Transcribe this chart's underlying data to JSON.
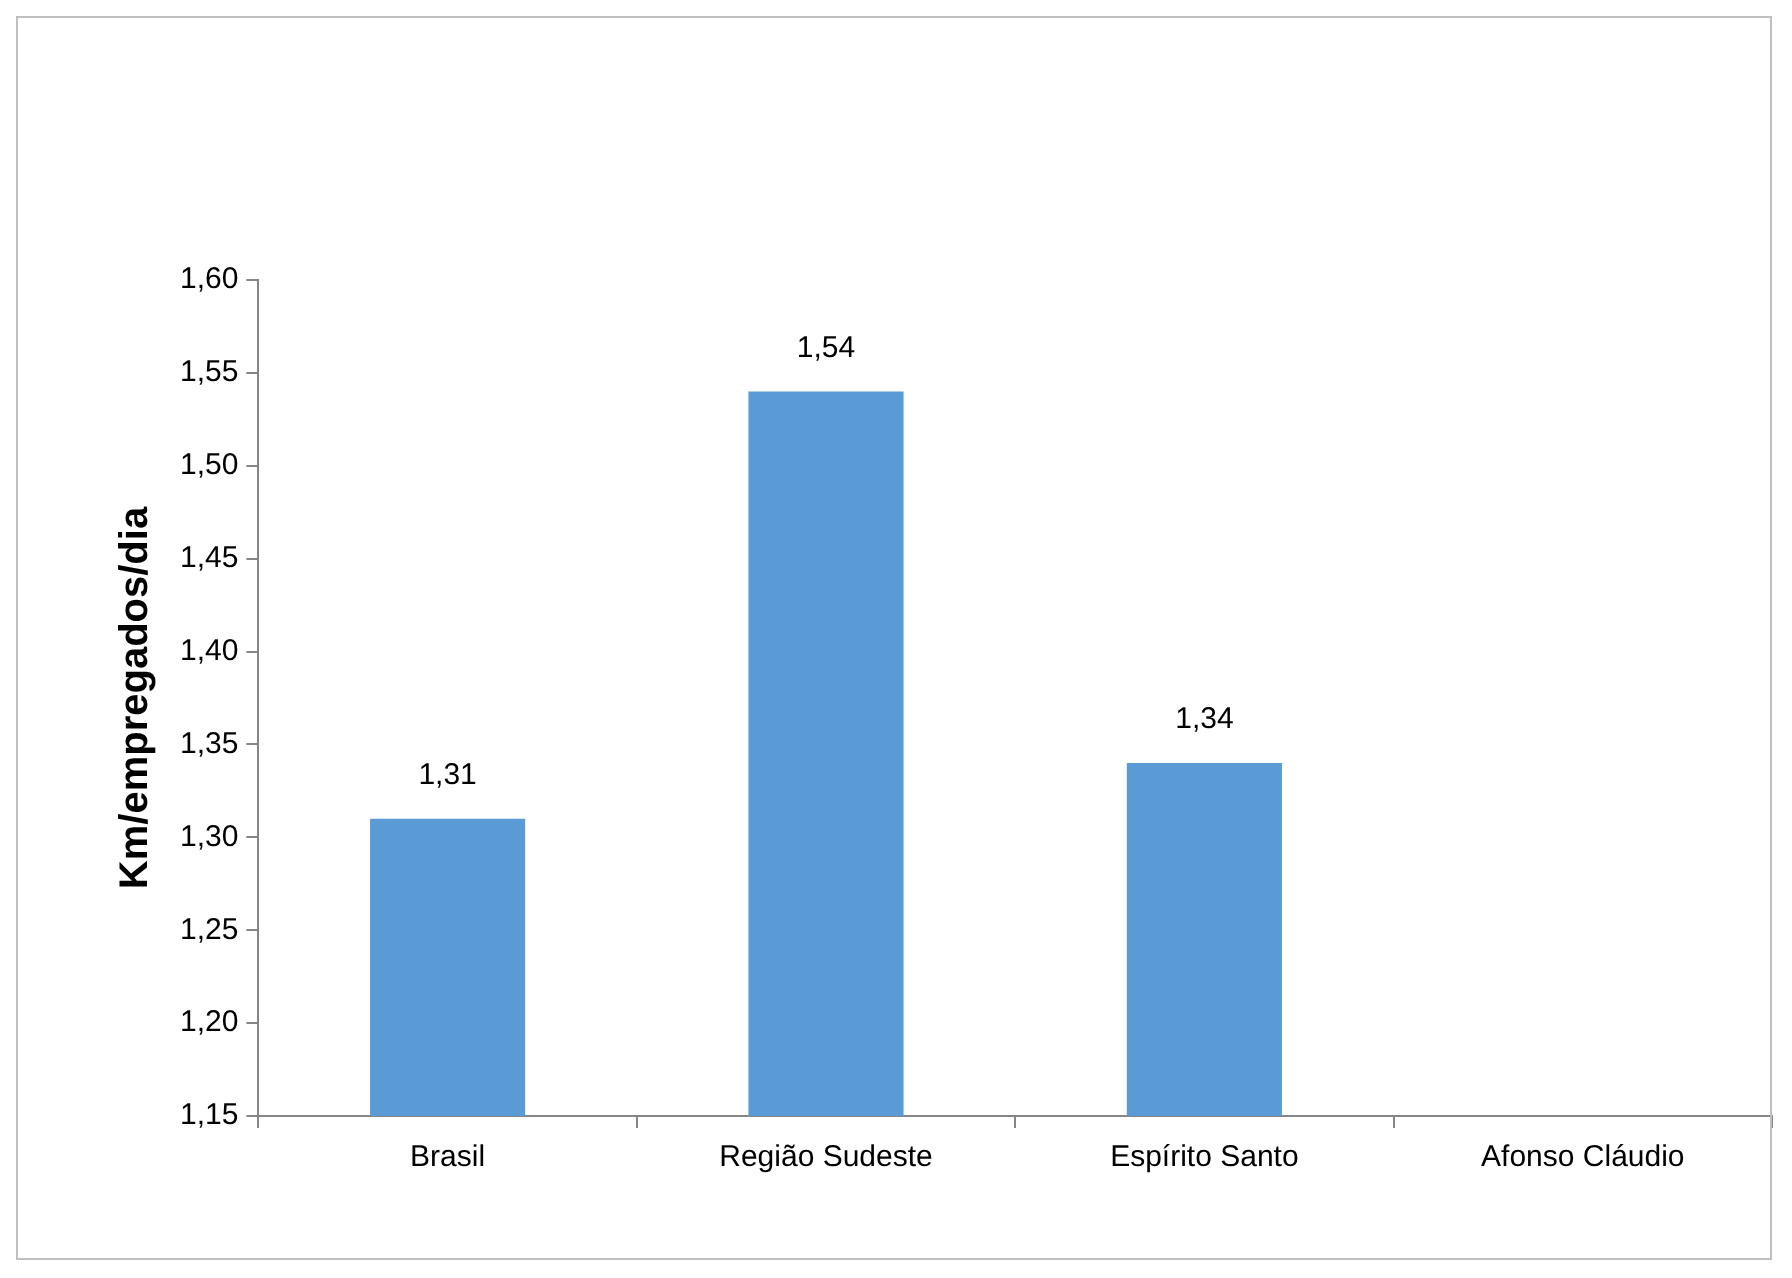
{
  "chart_data": {
    "type": "bar",
    "ylabel": "Km/empregados/dia",
    "categories": [
      "Brasil",
      "Região Sudeste",
      "Espírito Santo",
      "Afonso Cláudio"
    ],
    "values": [
      1.31,
      1.54,
      1.34,
      null
    ],
    "color": "#5b9bd5",
    "value_labels": [
      "1,31",
      "1,54",
      "1,34",
      null
    ],
    "ylim": [
      1.15,
      1.6
    ],
    "yticks": [
      {
        "value": 1.15,
        "label": "1,15"
      },
      {
        "value": 1.2,
        "label": "1,20"
      },
      {
        "value": 1.25,
        "label": "1,25"
      },
      {
        "value": 1.3,
        "label": "1,30"
      },
      {
        "value": 1.35,
        "label": "1,35"
      },
      {
        "value": 1.4,
        "label": "1,40"
      },
      {
        "value": 1.45,
        "label": "1,45"
      },
      {
        "value": 1.5,
        "label": "1,50"
      },
      {
        "value": 1.55,
        "label": "1,55"
      },
      {
        "value": 1.6,
        "label": "1,60"
      }
    ],
    "grid": false,
    "legend": false
  }
}
